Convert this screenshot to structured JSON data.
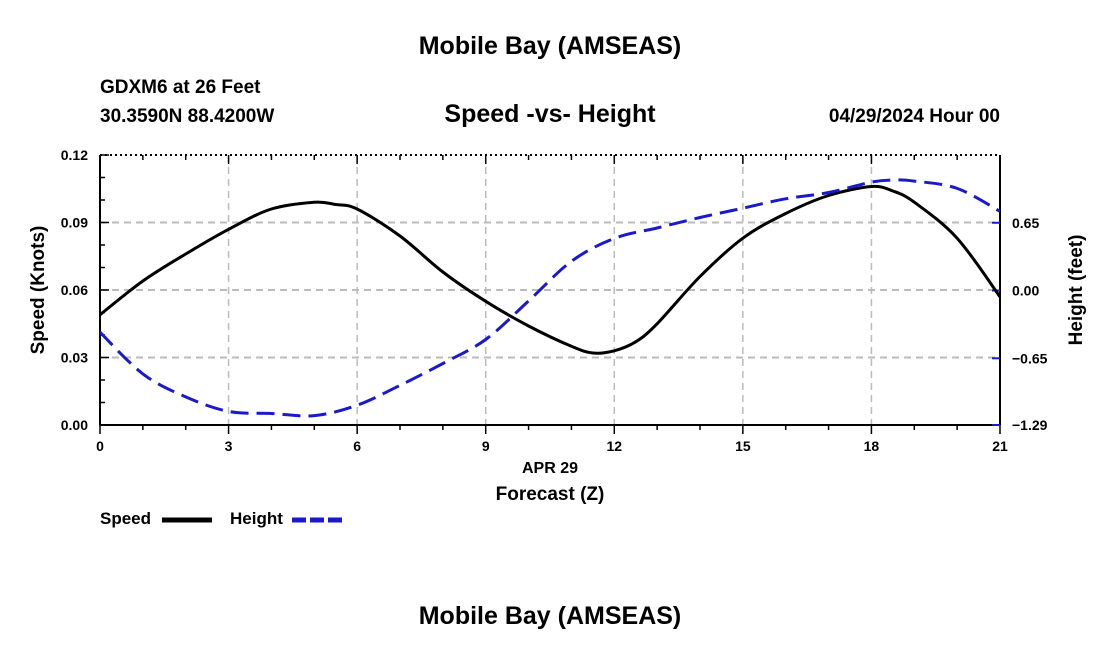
{
  "header": {
    "title": "Mobile Bay (AMSEAS)",
    "station_line1": "GDXM6 at 26 Feet",
    "station_line2": "30.3590N  88.4200W",
    "subtitle": "Speed -vs- Height",
    "datetime": "04/29/2024 Hour 00"
  },
  "footer": {
    "title": "Mobile Bay (AMSEAS)"
  },
  "colors": {
    "speed": "#000000",
    "height": "#1a1acc",
    "grid": "#bbbbbb"
  },
  "chart_data": {
    "type": "line",
    "xlabel": "Forecast (Z)",
    "xsublabel": "APR 29",
    "ylabel": "Speed (Knots)",
    "y2label": "Height (feet)",
    "xlim": [
      0,
      21
    ],
    "ylim": [
      0,
      0.12
    ],
    "y2lim": [
      -1.29,
      1.3
    ],
    "x_ticks": [
      "0",
      "3",
      "6",
      "9",
      "12",
      "15",
      "18",
      "21"
    ],
    "y_ticks": [
      "0.00",
      "0.03",
      "0.06",
      "0.09",
      "0.12"
    ],
    "y2_ticks": [
      {
        "value": -1.29,
        "label": "−1.29"
      },
      {
        "value": -0.65,
        "label": "−0.65"
      },
      {
        "value": 0.0,
        "label": "0.00"
      },
      {
        "value": 0.65,
        "label": "0.65"
      }
    ],
    "legend": [
      "Speed",
      "Height"
    ],
    "series": [
      {
        "name": "Speed",
        "axis": "left",
        "style": "solid",
        "x": [
          0,
          1,
          2,
          3,
          4,
          5,
          5.5,
          6,
          7,
          8,
          9,
          10,
          11,
          11.5,
          12,
          12.5,
          13,
          14,
          15,
          16,
          17,
          18,
          18.5,
          19,
          20,
          21
        ],
        "values": [
          0.049,
          0.064,
          0.076,
          0.087,
          0.096,
          0.099,
          0.098,
          0.096,
          0.084,
          0.068,
          0.055,
          0.044,
          0.035,
          0.032,
          0.033,
          0.037,
          0.045,
          0.066,
          0.083,
          0.094,
          0.102,
          0.106,
          0.104,
          0.099,
          0.083,
          0.057
        ]
      },
      {
        "name": "Height",
        "axis": "right",
        "style": "dashed",
        "x": [
          0,
          1,
          2,
          3,
          4,
          5,
          6,
          7,
          8,
          9,
          10,
          11,
          12,
          13,
          14,
          15,
          16,
          17,
          18,
          18.5,
          19,
          20,
          21
        ],
        "values": [
          -0.4,
          -0.8,
          -1.02,
          -1.16,
          -1.18,
          -1.2,
          -1.1,
          -0.91,
          -0.7,
          -0.47,
          -0.1,
          0.28,
          0.5,
          0.6,
          0.7,
          0.79,
          0.88,
          0.94,
          1.04,
          1.06,
          1.05,
          0.98,
          0.76
        ]
      }
    ]
  }
}
